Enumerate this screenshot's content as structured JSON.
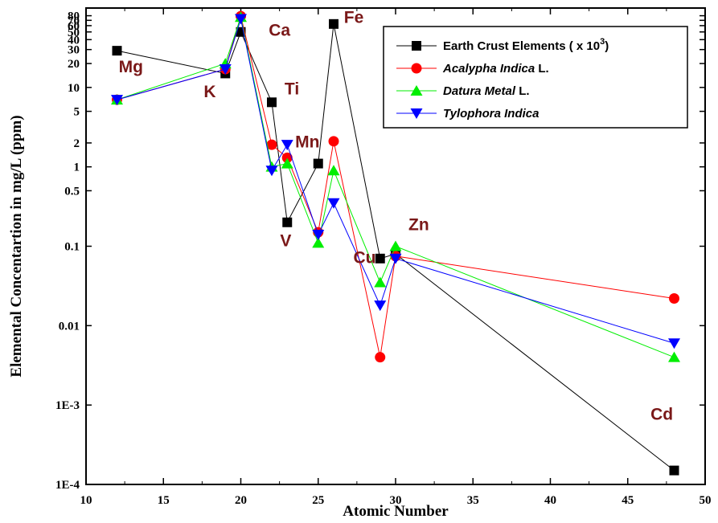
{
  "chart_data": {
    "type": "line",
    "xlabel": "Atomic Number",
    "ylabel": "Elemental Concentartion in mg/L (ppm)",
    "xlim": [
      10,
      50
    ],
    "ylim": [
      0.0001,
      100
    ],
    "y_scale": "log",
    "x_ticks": [
      "10",
      "15",
      "20",
      "25",
      "30",
      "35",
      "40",
      "45",
      "50"
    ],
    "y_ticks": [
      {
        "value": 80,
        "label": "80"
      },
      {
        "value": 70,
        "label": "70"
      },
      {
        "value": 60,
        "label": "60"
      },
      {
        "value": 50,
        "label": "50"
      },
      {
        "value": 40,
        "label": "40"
      },
      {
        "value": 30,
        "label": "30"
      },
      {
        "value": 20,
        "label": "20"
      },
      {
        "value": 10,
        "label": "10"
      },
      {
        "value": 5,
        "label": "5"
      },
      {
        "value": 2,
        "label": "2"
      },
      {
        "value": 1,
        "label": "1"
      },
      {
        "value": 0.5,
        "label": "0.5"
      },
      {
        "value": 0.1,
        "label": "0.1"
      },
      {
        "value": 0.01,
        "label": "0.01"
      },
      {
        "value": 0.001,
        "label": "1E-3"
      },
      {
        "value": 0.0001,
        "label": "1E-4"
      }
    ],
    "legend_position": "top-right",
    "legend": [
      {
        "text": "Earth Crust Elements ( x 10",
        "sup": "3",
        "after": ")",
        "italic_part": ""
      },
      {
        "text": "",
        "italic_part": "Acalypha Indica",
        "after": " L."
      },
      {
        "text": "",
        "italic_part": "Datura Metal",
        "after": " L."
      },
      {
        "text": "",
        "italic_part": "Tylophora Indica",
        "after": ""
      }
    ],
    "series": [
      {
        "name": "Earth Crust Elements ( x 10^3)",
        "color": "#000000",
        "marker": "square",
        "x": [
          12,
          19,
          20,
          22,
          23,
          25,
          26,
          29,
          30,
          48
        ],
        "y": [
          29,
          15,
          50,
          6.5,
          0.2,
          1.1,
          63,
          0.07,
          0.08,
          0.00015
        ]
      },
      {
        "name": "Acalypha Indica L.",
        "color": "#ff0000",
        "marker": "circle",
        "x": [
          12,
          19,
          20,
          22,
          23,
          25,
          26,
          29,
          30,
          48
        ],
        "y": [
          7,
          17,
          79,
          1.9,
          1.3,
          0.15,
          2.1,
          0.004,
          0.075,
          0.022
        ]
      },
      {
        "name": "Datura Metal L.",
        "color": "#00ee00",
        "marker": "triangle-up",
        "x": [
          12,
          19,
          20,
          22,
          23,
          25,
          26,
          29,
          30,
          48
        ],
        "y": [
          7,
          20,
          77,
          1.0,
          1.1,
          0.11,
          0.9,
          0.035,
          0.1,
          0.004
        ]
      },
      {
        "name": "Tylophora Indica",
        "color": "#0000ff",
        "marker": "triangle-down",
        "x": [
          12,
          19,
          20,
          22,
          23,
          25,
          26,
          29,
          30,
          48
        ],
        "y": [
          7,
          17,
          73,
          0.9,
          1.9,
          0.14,
          0.35,
          0.018,
          0.07,
          0.006
        ]
      }
    ],
    "annotations": [
      {
        "text": "Mg",
        "x": 12.9,
        "y": 15.5
      },
      {
        "text": "K",
        "x": 18.0,
        "y": 7.5
      },
      {
        "text": "Ca",
        "x": 22.5,
        "y": 45
      },
      {
        "text": "Ti",
        "x": 23.3,
        "y": 8.2
      },
      {
        "text": "Mn",
        "x": 24.3,
        "y": 1.75
      },
      {
        "text": "V",
        "x": 22.9,
        "y": 0.1
      },
      {
        "text": "Fe",
        "x": 27.3,
        "y": 65
      },
      {
        "text": "Cu",
        "x": 28.0,
        "y": 0.061
      },
      {
        "text": "Zn",
        "x": 31.5,
        "y": 0.16
      },
      {
        "text": "Cd",
        "x": 47.2,
        "y": 0.00065
      }
    ]
  }
}
